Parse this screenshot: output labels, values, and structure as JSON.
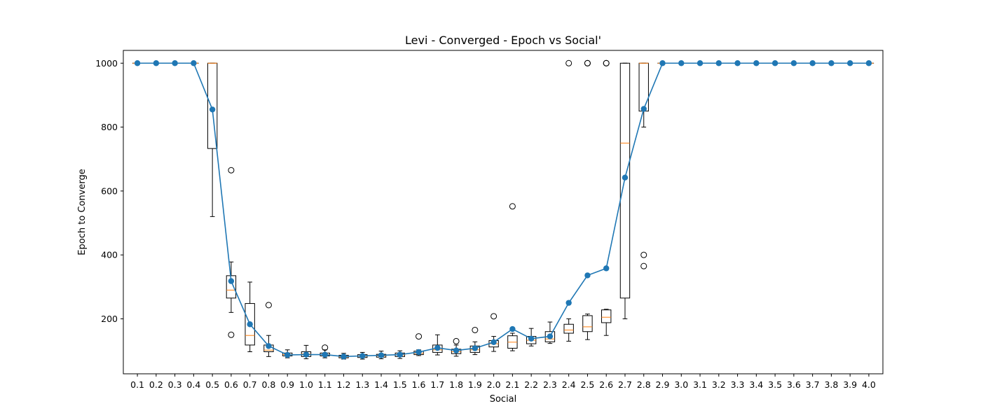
{
  "chart_data": {
    "type": "box+line",
    "title": "Levi - Converged - Epoch vs Social'",
    "xlabel": "Social",
    "ylabel": "Epoch to Converge",
    "ylim": [
      28,
      1040
    ],
    "yticks": [
      200,
      400,
      600,
      800,
      1000
    ],
    "grid": false,
    "colors": {
      "mean_line": "#1f77b4",
      "median": "#ff7f0e",
      "box": "#000000"
    },
    "categories": [
      "0.1",
      "0.2",
      "0.3",
      "0.4",
      "0.5",
      "0.6",
      "0.7",
      "0.8",
      "0.9",
      "1.0",
      "1.1",
      "1.2",
      "1.3",
      "1.4",
      "1.5",
      "1.6",
      "1.7",
      "1.8",
      "1.9",
      "2.0",
      "2.1",
      "2.2",
      "2.3",
      "2.4",
      "2.5",
      "2.6",
      "2.7",
      "2.8",
      "2.9",
      "3.0",
      "3.1",
      "3.2",
      "3.3",
      "3.4",
      "3.5",
      "3.6",
      "3.7",
      "3.8",
      "3.9",
      "4.0"
    ],
    "boxes": [
      {
        "whislo": 1000,
        "q1": 1000,
        "med": 1000,
        "q3": 1000,
        "whishi": 1000,
        "fliers": []
      },
      {
        "whislo": 1000,
        "q1": 1000,
        "med": 1000,
        "q3": 1000,
        "whishi": 1000,
        "fliers": []
      },
      {
        "whislo": 1000,
        "q1": 1000,
        "med": 1000,
        "q3": 1000,
        "whishi": 1000,
        "fliers": []
      },
      {
        "whislo": 1000,
        "q1": 1000,
        "med": 1000,
        "q3": 1000,
        "whishi": 1000,
        "fliers": []
      },
      {
        "whislo": 520,
        "q1": 733,
        "med": 1000,
        "q3": 1000,
        "whishi": 1000,
        "fliers": []
      },
      {
        "whislo": 220,
        "q1": 265,
        "med": 290,
        "q3": 335,
        "whishi": 378,
        "fliers": [
          150,
          665
        ]
      },
      {
        "whislo": 97,
        "q1": 118,
        "med": 148,
        "q3": 248,
        "whishi": 315,
        "fliers": []
      },
      {
        "whislo": 82,
        "q1": 97,
        "med": 102,
        "q3": 118,
        "whishi": 148,
        "fliers": [
          243
        ]
      },
      {
        "whislo": 78,
        "q1": 84,
        "med": 88,
        "q3": 93,
        "whishi": 103,
        "fliers": []
      },
      {
        "whislo": 75,
        "q1": 82,
        "med": 90,
        "q3": 97,
        "whishi": 117,
        "fliers": []
      },
      {
        "whislo": 78,
        "q1": 84,
        "med": 88,
        "q3": 93,
        "whishi": 103,
        "fliers": [
          110
        ]
      },
      {
        "whislo": 74,
        "q1": 78,
        "med": 81,
        "q3": 86,
        "whishi": 92,
        "fliers": []
      },
      {
        "whislo": 74,
        "q1": 79,
        "med": 83,
        "q3": 88,
        "whishi": 95,
        "fliers": []
      },
      {
        "whislo": 75,
        "q1": 80,
        "med": 84,
        "q3": 89,
        "whishi": 99,
        "fliers": []
      },
      {
        "whislo": 76,
        "q1": 82,
        "med": 87,
        "q3": 93,
        "whishi": 100,
        "fliers": []
      },
      {
        "whislo": 85,
        "q1": 88,
        "med": 92,
        "q3": 99,
        "whishi": 103,
        "fliers": [
          145
        ]
      },
      {
        "whislo": 87,
        "q1": 95,
        "med": 103,
        "q3": 118,
        "whishi": 150,
        "fliers": []
      },
      {
        "whislo": 83,
        "q1": 91,
        "med": 97,
        "q3": 105,
        "whishi": 118,
        "fliers": [
          130
        ]
      },
      {
        "whislo": 88,
        "q1": 95,
        "med": 103,
        "q3": 115,
        "whishi": 128,
        "fliers": [
          165
        ]
      },
      {
        "whislo": 98,
        "q1": 112,
        "med": 122,
        "q3": 132,
        "whishi": 145,
        "fliers": [
          208
        ]
      },
      {
        "whislo": 100,
        "q1": 108,
        "med": 127,
        "q3": 147,
        "whishi": 155,
        "fliers": [
          552
        ]
      },
      {
        "whislo": 115,
        "q1": 122,
        "med": 133,
        "q3": 145,
        "whishi": 170,
        "fliers": []
      },
      {
        "whislo": 123,
        "q1": 128,
        "med": 137,
        "q3": 160,
        "whishi": 190,
        "fliers": []
      },
      {
        "whislo": 130,
        "q1": 155,
        "med": 165,
        "q3": 183,
        "whishi": 200,
        "fliers": [
          1000
        ]
      },
      {
        "whislo": 135,
        "q1": 160,
        "med": 175,
        "q3": 210,
        "whishi": 215,
        "fliers": [
          1000,
          1000
        ]
      },
      {
        "whislo": 148,
        "q1": 188,
        "med": 205,
        "q3": 228,
        "whishi": 230,
        "fliers": [
          1000,
          1000
        ]
      },
      {
        "whislo": 200,
        "q1": 265,
        "med": 750,
        "q3": 1000,
        "whishi": 1000,
        "fliers": []
      },
      {
        "whislo": 800,
        "q1": 850,
        "med": 1000,
        "q3": 1000,
        "whishi": 1000,
        "fliers": [
          365,
          400
        ]
      },
      {
        "whislo": 1000,
        "q1": 1000,
        "med": 1000,
        "q3": 1000,
        "whishi": 1000,
        "fliers": []
      },
      {
        "whislo": 1000,
        "q1": 1000,
        "med": 1000,
        "q3": 1000,
        "whishi": 1000,
        "fliers": []
      },
      {
        "whislo": 1000,
        "q1": 1000,
        "med": 1000,
        "q3": 1000,
        "whishi": 1000,
        "fliers": []
      },
      {
        "whislo": 1000,
        "q1": 1000,
        "med": 1000,
        "q3": 1000,
        "whishi": 1000,
        "fliers": []
      },
      {
        "whislo": 1000,
        "q1": 1000,
        "med": 1000,
        "q3": 1000,
        "whishi": 1000,
        "fliers": []
      },
      {
        "whislo": 1000,
        "q1": 1000,
        "med": 1000,
        "q3": 1000,
        "whishi": 1000,
        "fliers": []
      },
      {
        "whislo": 1000,
        "q1": 1000,
        "med": 1000,
        "q3": 1000,
        "whishi": 1000,
        "fliers": []
      },
      {
        "whislo": 1000,
        "q1": 1000,
        "med": 1000,
        "q3": 1000,
        "whishi": 1000,
        "fliers": []
      },
      {
        "whislo": 1000,
        "q1": 1000,
        "med": 1000,
        "q3": 1000,
        "whishi": 1000,
        "fliers": []
      },
      {
        "whislo": 1000,
        "q1": 1000,
        "med": 1000,
        "q3": 1000,
        "whishi": 1000,
        "fliers": []
      },
      {
        "whislo": 1000,
        "q1": 1000,
        "med": 1000,
        "q3": 1000,
        "whishi": 1000,
        "fliers": []
      },
      {
        "whislo": 1000,
        "q1": 1000,
        "med": 1000,
        "q3": 1000,
        "whishi": 1000,
        "fliers": []
      }
    ],
    "mean_values": [
      1000,
      1000,
      1000,
      1000,
      855,
      318,
      183,
      115,
      87,
      88,
      88,
      82,
      84,
      86,
      88,
      96,
      109,
      101,
      108,
      127,
      168,
      138,
      145,
      250,
      336,
      358,
      642,
      857,
      1000,
      1000,
      1000,
      1000,
      1000,
      1000,
      1000,
      1000,
      1000,
      1000,
      1000,
      1000
    ]
  }
}
